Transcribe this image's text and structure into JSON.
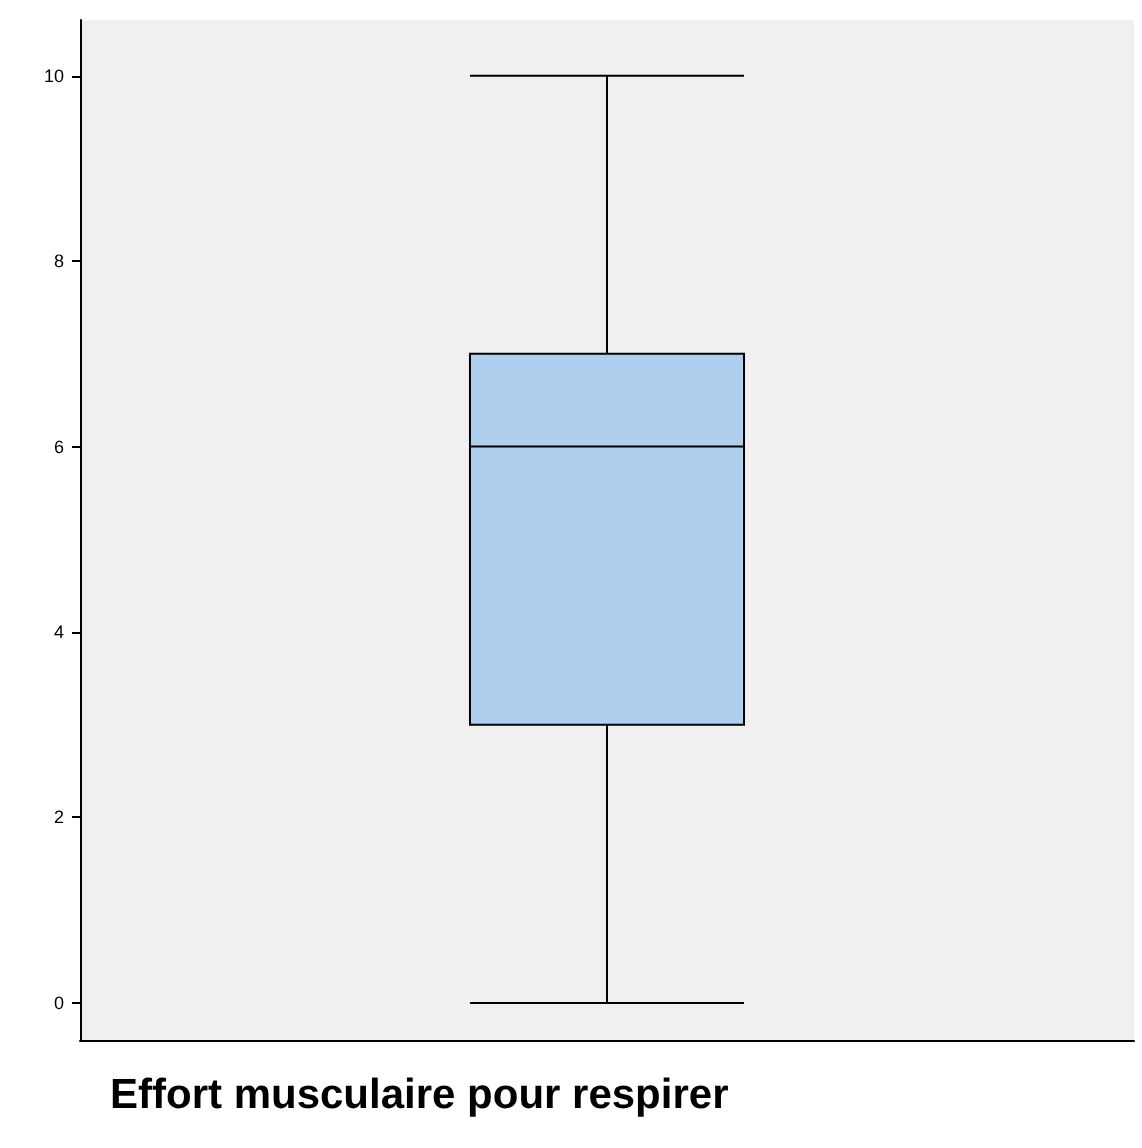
{
  "chart_data": {
    "type": "box",
    "xlabel": "Effort musculaire pour respirer",
    "categories": [
      null
    ],
    "series": [
      {
        "color": "#aed0ee",
        "boxes": [
          {
            "low": 0,
            "q1": 3,
            "median": 6,
            "q3": 7,
            "high": 10
          }
        ]
      }
    ],
    "ylim": [
      -0.4,
      10.6
    ],
    "yticks": [
      0,
      2,
      4,
      6,
      8,
      10
    ],
    "grid": false
  }
}
